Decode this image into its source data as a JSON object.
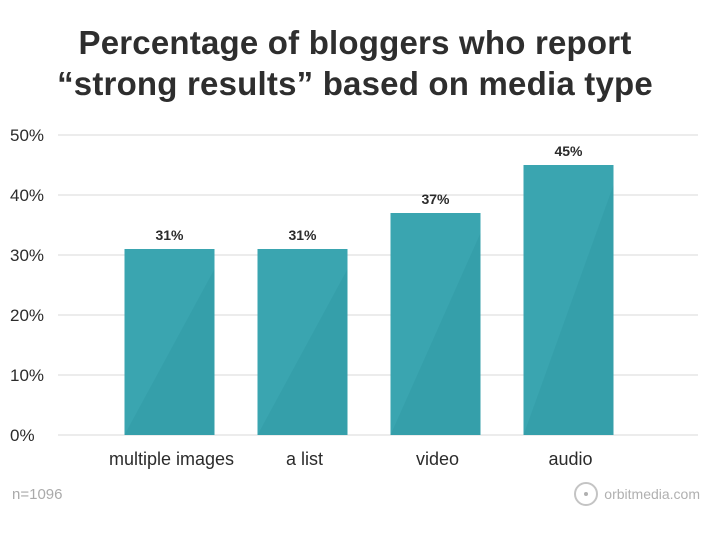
{
  "title_lines": [
    "Percentage of bloggers who report",
    "“strong results” based on media type"
  ],
  "footnote": "n=1096",
  "brand": {
    "text": "orbitmedia.com",
    "icon": "orbit-logo-icon"
  },
  "colors": {
    "bar": "#3aa5b0",
    "bar_shade": "#319aa5",
    "grid": "#d9d9d9",
    "text": "#2b2b2b"
  },
  "chart_data": {
    "type": "bar",
    "title": "Percentage of bloggers who report “strong results” based on media type",
    "categories": [
      "multiple images",
      "a list",
      "video",
      "audio"
    ],
    "values": [
      31,
      31,
      37,
      45
    ],
    "data_labels": [
      "31%",
      "31%",
      "37%",
      "45%"
    ],
    "ylim": [
      0,
      50
    ],
    "yticks": [
      0,
      10,
      20,
      30,
      40,
      50
    ],
    "ytick_labels": [
      "0%",
      "10%",
      "20%",
      "30%",
      "40%",
      "50%"
    ],
    "xlabel": "",
    "ylabel": "",
    "grid": true,
    "legend": "none"
  }
}
